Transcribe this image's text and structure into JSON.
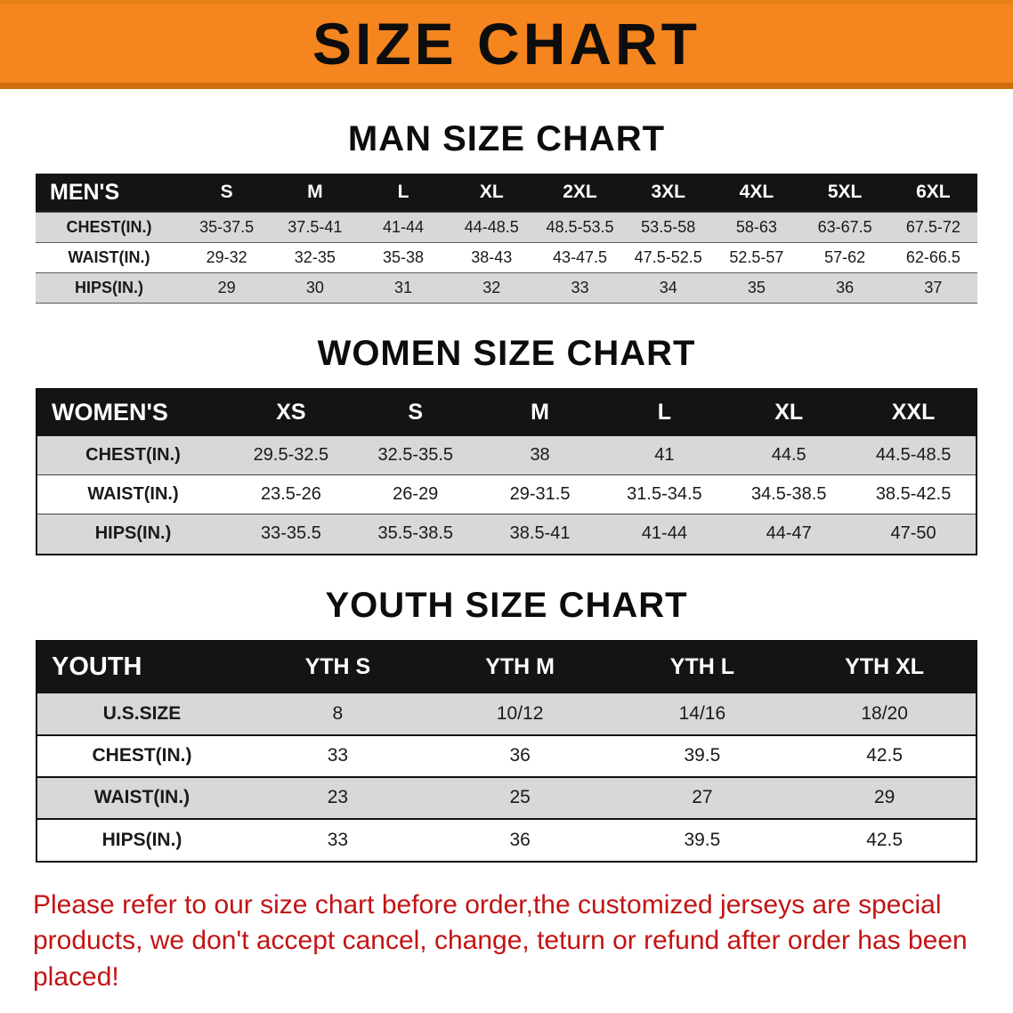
{
  "banner": {
    "title": "SIZE CHART"
  },
  "sections": [
    {
      "heading": "MAN SIZE CHART",
      "table": {
        "label": "MEN'S",
        "columns": [
          "S",
          "M",
          "L",
          "XL",
          "2XL",
          "3XL",
          "4XL",
          "5XL",
          "6XL"
        ],
        "rows": [
          {
            "label": "CHEST(IN.)",
            "values": [
              "35-37.5",
              "37.5-41",
              "41-44",
              "44-48.5",
              "48.5-53.5",
              "53.5-58",
              "58-63",
              "63-67.5",
              "67.5-72"
            ]
          },
          {
            "label": "WAIST(IN.)",
            "values": [
              "29-32",
              "32-35",
              "35-38",
              "38-43",
              "43-47.5",
              "47.5-52.5",
              "52.5-57",
              "57-62",
              "62-66.5"
            ]
          },
          {
            "label": "HIPS(IN.)",
            "values": [
              "29",
              "30",
              "31",
              "32",
              "33",
              "34",
              "35",
              "36",
              "37"
            ]
          }
        ]
      }
    },
    {
      "heading": "WOMEN SIZE CHART",
      "table": {
        "label": "WOMEN'S",
        "columns": [
          "XS",
          "S",
          "M",
          "L",
          "XL",
          "XXL"
        ],
        "rows": [
          {
            "label": "CHEST(IN.)",
            "values": [
              "29.5-32.5",
              "32.5-35.5",
              "38",
              "41",
              "44.5",
              "44.5-48.5"
            ]
          },
          {
            "label": "WAIST(IN.)",
            "values": [
              "23.5-26",
              "26-29",
              "29-31.5",
              "31.5-34.5",
              "34.5-38.5",
              "38.5-42.5"
            ]
          },
          {
            "label": "HIPS(IN.)",
            "values": [
              "33-35.5",
              "35.5-38.5",
              "38.5-41",
              "41-44",
              "44-47",
              "47-50"
            ]
          }
        ]
      }
    },
    {
      "heading": "YOUTH SIZE CHART",
      "table": {
        "label": "YOUTH",
        "columns": [
          "YTH S",
          "YTH M",
          "YTH L",
          "YTH XL"
        ],
        "rows": [
          {
            "label": "U.S.SIZE",
            "values": [
              "8",
              "10/12",
              "14/16",
              "18/20"
            ]
          },
          {
            "label": "CHEST(IN.)",
            "values": [
              "33",
              "36",
              "39.5",
              "42.5"
            ]
          },
          {
            "label": "WAIST(IN.)",
            "values": [
              "23",
              "25",
              "27",
              "29"
            ]
          },
          {
            "label": "HIPS(IN.)",
            "values": [
              "33",
              "36",
              "39.5",
              "42.5"
            ]
          }
        ]
      }
    }
  ],
  "footer": {
    "text": "Please refer to our size chart before order,the customized jerseys are special products, we don't accept cancel, change, teturn or refund after order has been placed!"
  },
  "colors": {
    "banner_bg": "#F5851E",
    "banner_border": "#CE6D0B",
    "table_header_bg": "#141414",
    "row_alt_bg": "#D8D8D8",
    "footer_text": "#C21414"
  }
}
